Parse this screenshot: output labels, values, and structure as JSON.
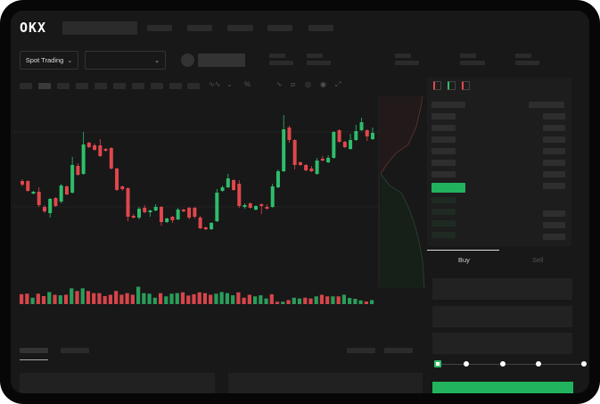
{
  "header": {
    "logo": "OKX"
  },
  "toolbar": {
    "market_selector": "Spot Trading",
    "pair_selector": "",
    "icons": [
      "indicator-icon",
      "line-type-icon",
      "percent-icon",
      "wave-icon",
      "ruler-icon",
      "camera-icon",
      "settings-circle-icon",
      "fullscreen-icon"
    ]
  },
  "orderbook": {
    "view_icons": [
      "book-both-icon",
      "book-bids-icon",
      "book-asks-icon"
    ],
    "highlight_color": "#22b35e"
  },
  "trade": {
    "tabs": [
      {
        "label": "Buy",
        "active": true
      },
      {
        "label": "Sell",
        "active": false
      }
    ],
    "slider_percent": 0,
    "slider_steps": [
      0,
      25,
      50,
      75,
      100
    ],
    "buy_color": "#22b35e"
  },
  "colors": {
    "up": "#2ebd6b",
    "down": "#e0474c",
    "background": "#181818"
  },
  "chart_data": {
    "type": "candlestick",
    "candles": [
      [
        97,
        99,
        91,
        93
      ],
      [
        97,
        98,
        85,
        86
      ],
      [
        83,
        86,
        82,
        85
      ],
      [
        85,
        90,
        68,
        70
      ],
      [
        68,
        70,
        61,
        63
      ],
      [
        61,
        78,
        56,
        77
      ],
      [
        78,
        79,
        68,
        69
      ],
      [
        74,
        94,
        72,
        92
      ],
      [
        91,
        92,
        81,
        82
      ],
      [
        84,
        124,
        83,
        115
      ],
      [
        114,
        117,
        103,
        104
      ],
      [
        105,
        152,
        104,
        138
      ],
      [
        140,
        141,
        134,
        135
      ],
      [
        137,
        139,
        131,
        132
      ],
      [
        137,
        144,
        124,
        125
      ],
      [
        133,
        134,
        130,
        131
      ],
      [
        134,
        135,
        110,
        111
      ],
      [
        111,
        112,
        86,
        87
      ],
      [
        91,
        92,
        86,
        88
      ],
      [
        89,
        90,
        52,
        57
      ],
      [
        58,
        60,
        55,
        56
      ],
      [
        56,
        68,
        54,
        66
      ],
      [
        67,
        70,
        61,
        62
      ],
      [
        62,
        65,
        57,
        64
      ],
      [
        64,
        71,
        63,
        68
      ],
      [
        68,
        69,
        47,
        51
      ],
      [
        51,
        56,
        50,
        55
      ],
      [
        57,
        58,
        50,
        53
      ],
      [
        54,
        67,
        53,
        65
      ],
      [
        65,
        66,
        62,
        63
      ],
      [
        67,
        68,
        54,
        56
      ],
      [
        67,
        68,
        55,
        57
      ],
      [
        56,
        58,
        43,
        44
      ],
      [
        45,
        46,
        42,
        43
      ],
      [
        43,
        51,
        42,
        50
      ],
      [
        52,
        88,
        51,
        84
      ],
      [
        86,
        92,
        85,
        90
      ],
      [
        90,
        105,
        89,
        100
      ],
      [
        98,
        99,
        86,
        87
      ],
      [
        94,
        98,
        67,
        69
      ],
      [
        68,
        72,
        66,
        70
      ],
      [
        72,
        73,
        66,
        67
      ],
      [
        65,
        70,
        64,
        69
      ],
      [
        71,
        72,
        60,
        69
      ],
      [
        68,
        71,
        65,
        66
      ],
      [
        68,
        94,
        67,
        91
      ],
      [
        90,
        110,
        89,
        108
      ],
      [
        108,
        171,
        107,
        155
      ],
      [
        157,
        159,
        140,
        143
      ],
      [
        143,
        144,
        110,
        115
      ],
      [
        118,
        119,
        114,
        115
      ],
      [
        115,
        116,
        108,
        109
      ],
      [
        111,
        114,
        107,
        108
      ],
      [
        105,
        123,
        104,
        120
      ],
      [
        122,
        125,
        119,
        120
      ],
      [
        118,
        126,
        117,
        123
      ],
      [
        123,
        153,
        122,
        152
      ],
      [
        154,
        155,
        140,
        141
      ],
      [
        141,
        142,
        134,
        135
      ],
      [
        133,
        150,
        132,
        143
      ],
      [
        143,
        160,
        142,
        153
      ],
      [
        154,
        168,
        153,
        163
      ],
      [
        154,
        155,
        142,
        147
      ],
      [
        144,
        157,
        143,
        151
      ]
    ],
    "volume": [
      [
        37,
        "d"
      ],
      [
        39,
        "d"
      ],
      [
        24,
        "u"
      ],
      [
        39,
        "d"
      ],
      [
        30,
        "d"
      ],
      [
        45,
        "u"
      ],
      [
        35,
        "d"
      ],
      [
        33,
        "u"
      ],
      [
        35,
        "d"
      ],
      [
        59,
        "u"
      ],
      [
        49,
        "d"
      ],
      [
        59,
        "u"
      ],
      [
        49,
        "d"
      ],
      [
        41,
        "d"
      ],
      [
        41,
        "d"
      ],
      [
        30,
        "d"
      ],
      [
        35,
        "d"
      ],
      [
        49,
        "d"
      ],
      [
        35,
        "d"
      ],
      [
        41,
        "d"
      ],
      [
        35,
        "d"
      ],
      [
        65,
        "u"
      ],
      [
        41,
        "u"
      ],
      [
        39,
        "u"
      ],
      [
        24,
        "u"
      ],
      [
        41,
        "d"
      ],
      [
        29,
        "u"
      ],
      [
        39,
        "u"
      ],
      [
        41,
        "u"
      ],
      [
        44,
        "d"
      ],
      [
        32,
        "d"
      ],
      [
        37,
        "d"
      ],
      [
        44,
        "d"
      ],
      [
        41,
        "d"
      ],
      [
        35,
        "d"
      ],
      [
        39,
        "u"
      ],
      [
        45,
        "u"
      ],
      [
        41,
        "u"
      ],
      [
        33,
        "u"
      ],
      [
        44,
        "d"
      ],
      [
        24,
        "d"
      ],
      [
        35,
        "d"
      ],
      [
        29,
        "u"
      ],
      [
        33,
        "u"
      ],
      [
        21,
        "u"
      ],
      [
        37,
        "d"
      ],
      [
        9,
        "d"
      ],
      [
        9,
        "u"
      ],
      [
        15,
        "d"
      ],
      [
        24,
        "u"
      ],
      [
        21,
        "u"
      ],
      [
        24,
        "d"
      ],
      [
        21,
        "d"
      ],
      [
        29,
        "u"
      ],
      [
        35,
        "d"
      ],
      [
        29,
        "d"
      ],
      [
        29,
        "u"
      ],
      [
        29,
        "d"
      ],
      [
        35,
        "u"
      ],
      [
        23,
        "u"
      ],
      [
        20,
        "u"
      ],
      [
        14,
        "u"
      ],
      [
        10,
        "d"
      ],
      [
        15,
        "u"
      ]
    ]
  }
}
